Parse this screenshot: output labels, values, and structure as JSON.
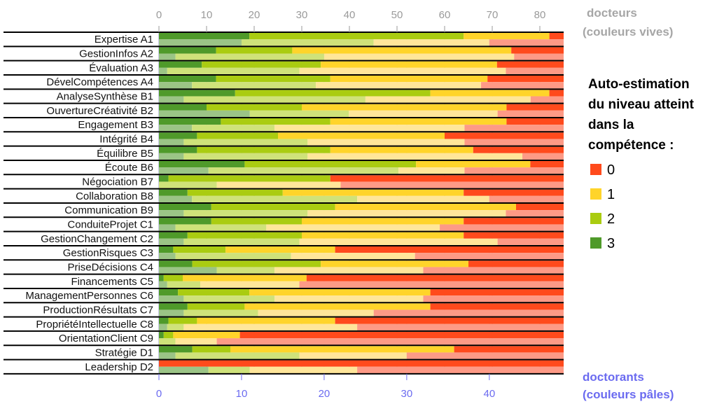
{
  "chart_data": {
    "type": "bar",
    "orientation": "horizontal",
    "stacked": true,
    "categories": [
      "Expertise A1",
      "GestionInfos A2",
      "Évaluation A3",
      "DévelCompétences A4",
      "AnalyseSynthèse B1",
      "OuvertureCréativité B2",
      "Engagement B3",
      "Intégrité B4",
      "Équilibre B5",
      "Écoute B6",
      "Négociation B7",
      "Collaboration B8",
      "Communication B9",
      "ConduiteProjet C1",
      "GestionChangement C2",
      "GestionRisques C3",
      "PriseDécisions C4",
      "Financements C5",
      "ManagementPersonnes C6",
      "ProductionRésultats C7",
      "PropriétéIntellectuelle C8",
      "OrientationClient C9",
      "Stratégie D1",
      "Leadership D2"
    ],
    "x_top": {
      "title_line1": "docteurs",
      "title_line2": "(couleurs vives)",
      "ticks": [
        "0",
        "10",
        "20",
        "30",
        "40",
        "50",
        "60",
        "70",
        "80"
      ],
      "range": [
        0,
        85
      ]
    },
    "x_bottom": {
      "title_line1": "doctorants",
      "title_line2": "(couleurs pâles)",
      "ticks": [
        "0",
        "10",
        "20",
        "30",
        "40"
      ],
      "range": [
        0,
        49
      ]
    },
    "legend": {
      "title_lines": [
        "Auto-estimation",
        "du niveau atteint",
        "dans la",
        "compétence :"
      ],
      "placement": "right",
      "items": [
        {
          "label": "0",
          "color": "#ff4a1c"
        },
        {
          "label": "1",
          "color": "#ffd42a"
        },
        {
          "label": "2",
          "color": "#aacc11"
        },
        {
          "label": "3",
          "color": "#4f9a2a"
        }
      ]
    },
    "colors_vivid": {
      "l3": "#4f9a2a",
      "l2": "#aacc11",
      "l1": "#ffd42a",
      "l0": "#ff4a1c"
    },
    "colors_pale": {
      "l3": "#9bc486",
      "l2": "#cfe27a",
      "l1": "#ffe69a",
      "l0": "#fd9a86"
    },
    "series_levels": [
      "3",
      "2",
      "1",
      "0"
    ],
    "docteurs": [
      [
        19,
        45,
        18,
        3
      ],
      [
        12,
        16,
        46,
        11
      ],
      [
        9,
        25,
        37,
        14
      ],
      [
        12,
        24,
        33,
        16
      ],
      [
        16,
        41,
        25,
        3
      ],
      [
        10,
        20,
        43,
        12
      ],
      [
        13,
        23,
        37,
        12
      ],
      [
        8,
        17,
        35,
        25
      ],
      [
        8,
        28,
        30,
        19
      ],
      [
        18,
        36,
        24,
        7
      ],
      [
        2,
        34,
        0,
        49
      ],
      [
        6,
        20,
        38,
        21
      ],
      [
        11,
        26,
        38,
        10
      ],
      [
        11,
        19,
        34,
        21
      ],
      [
        6,
        24,
        34,
        21
      ],
      [
        3,
        11,
        23,
        48
      ],
      [
        7,
        27,
        31,
        20
      ],
      [
        1,
        4,
        26,
        54
      ],
      [
        4,
        15,
        38,
        28
      ],
      [
        6,
        12,
        39,
        28
      ],
      [
        2,
        6,
        29,
        48
      ],
      [
        1,
        2,
        14,
        68
      ],
      [
        7,
        8,
        47,
        23
      ],
      [
        0,
        0,
        0,
        85
      ]
    ],
    "doctorants": [
      [
        10,
        16,
        14,
        9
      ],
      [
        2,
        18,
        23,
        6
      ],
      [
        1,
        16,
        25,
        7
      ],
      [
        4,
        15,
        20,
        10
      ],
      [
        3,
        22,
        20,
        4
      ],
      [
        11,
        12,
        18,
        8
      ],
      [
        4,
        10,
        23,
        12
      ],
      [
        3,
        15,
        19,
        12
      ],
      [
        3,
        15,
        26,
        5
      ],
      [
        6,
        23,
        8,
        12
      ],
      [
        0,
        7,
        15,
        27
      ],
      [
        4,
        20,
        16,
        9
      ],
      [
        3,
        15,
        24,
        7
      ],
      [
        2,
        11,
        21,
        15
      ],
      [
        3,
        14,
        24,
        8
      ],
      [
        2,
        14,
        15,
        18
      ],
      [
        7,
        7,
        18,
        17
      ],
      [
        1,
        4,
        12,
        32
      ],
      [
        3,
        11,
        18,
        17
      ],
      [
        3,
        9,
        14,
        23
      ],
      [
        1,
        2,
        21,
        25
      ],
      [
        0,
        2,
        5,
        42
      ],
      [
        2,
        15,
        13,
        19
      ],
      [
        6,
        5,
        13,
        25
      ]
    ]
  }
}
